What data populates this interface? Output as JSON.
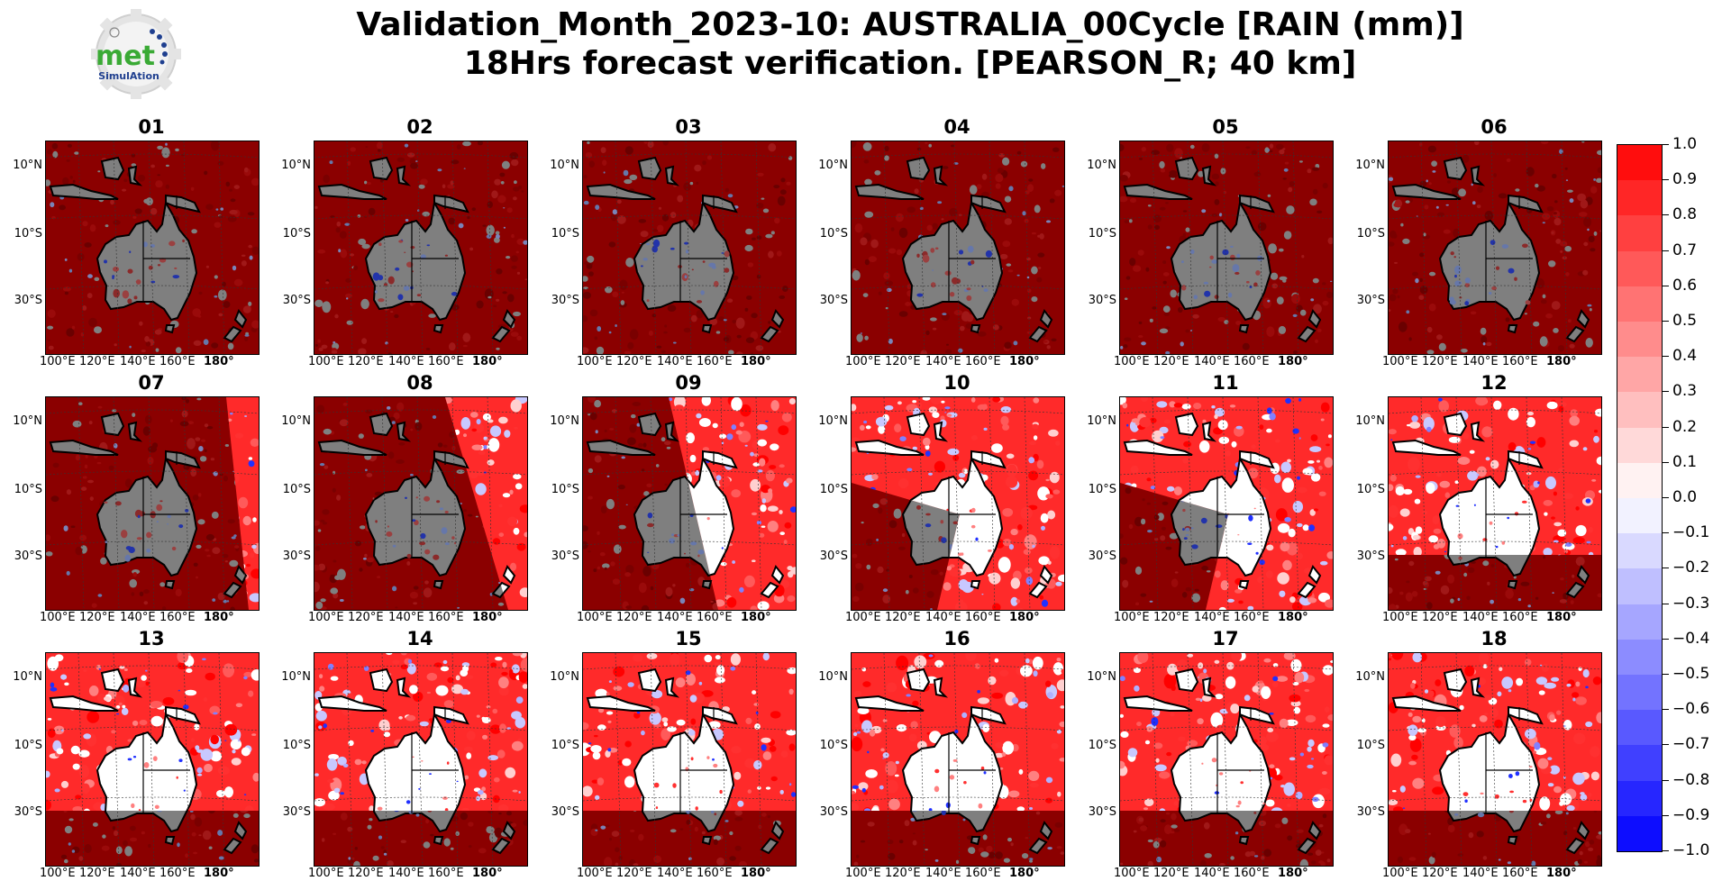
{
  "title": {
    "line1": "Validation_Month_2023-10: AUSTRALIA_00Cycle [RAIN (mm)]",
    "line2": "18Hrs forecast verification.  [PEARSON_R; 40 km]"
  },
  "logo": {
    "text_main": "met",
    "text_sub": "SimulAtion",
    "icon": "gear-logo-icon",
    "color_green": "#3aaa35",
    "color_blue": "#1f3f8f"
  },
  "panels": [
    {
      "label": "01",
      "overlay": "none"
    },
    {
      "label": "02",
      "overlay": "none"
    },
    {
      "label": "03",
      "overlay": "none"
    },
    {
      "label": "04",
      "overlay": "none"
    },
    {
      "label": "05",
      "overlay": "none"
    },
    {
      "label": "06",
      "overlay": "none"
    },
    {
      "label": "07",
      "overlay": "right-strip"
    },
    {
      "label": "08",
      "overlay": "right-wedge"
    },
    {
      "label": "09",
      "overlay": "right-half"
    },
    {
      "label": "10",
      "overlay": "most"
    },
    {
      "label": "11",
      "overlay": "most"
    },
    {
      "label": "12",
      "overlay": "bottom-band"
    },
    {
      "label": "13",
      "overlay": "bottom-band"
    },
    {
      "label": "14",
      "overlay": "bottom-band"
    },
    {
      "label": "15",
      "overlay": "bottom-band"
    },
    {
      "label": "16",
      "overlay": "bottom-band"
    },
    {
      "label": "17",
      "overlay": "bottom-band"
    },
    {
      "label": "18",
      "overlay": "bottom-band"
    }
  ],
  "axes": {
    "lat_labels": [
      "10°N",
      "10°S",
      "30°S"
    ],
    "lon_labels": [
      "100°E",
      "120°E",
      "140°E",
      "160°E",
      "180°"
    ]
  },
  "colorbar": {
    "min": -1.0,
    "max": 1.0,
    "step": 0.1,
    "tick_labels": [
      "1.0",
      "0.9",
      "0.8",
      "0.7",
      "0.6",
      "0.5",
      "0.4",
      "0.3",
      "0.2",
      "0.1",
      "0.0",
      "−0.1",
      "−0.2",
      "−0.3",
      "−0.4",
      "−0.5",
      "−0.6",
      "−0.7",
      "−0.8",
      "−0.9",
      "−1.0"
    ],
    "color_low": "#0000ff",
    "color_mid": "#ffffff",
    "color_high": "#ff0000"
  },
  "map_colors": {
    "land_masked": "#7f7f7f",
    "ocean_masked": "#8b0000",
    "coast": "#000000"
  }
}
